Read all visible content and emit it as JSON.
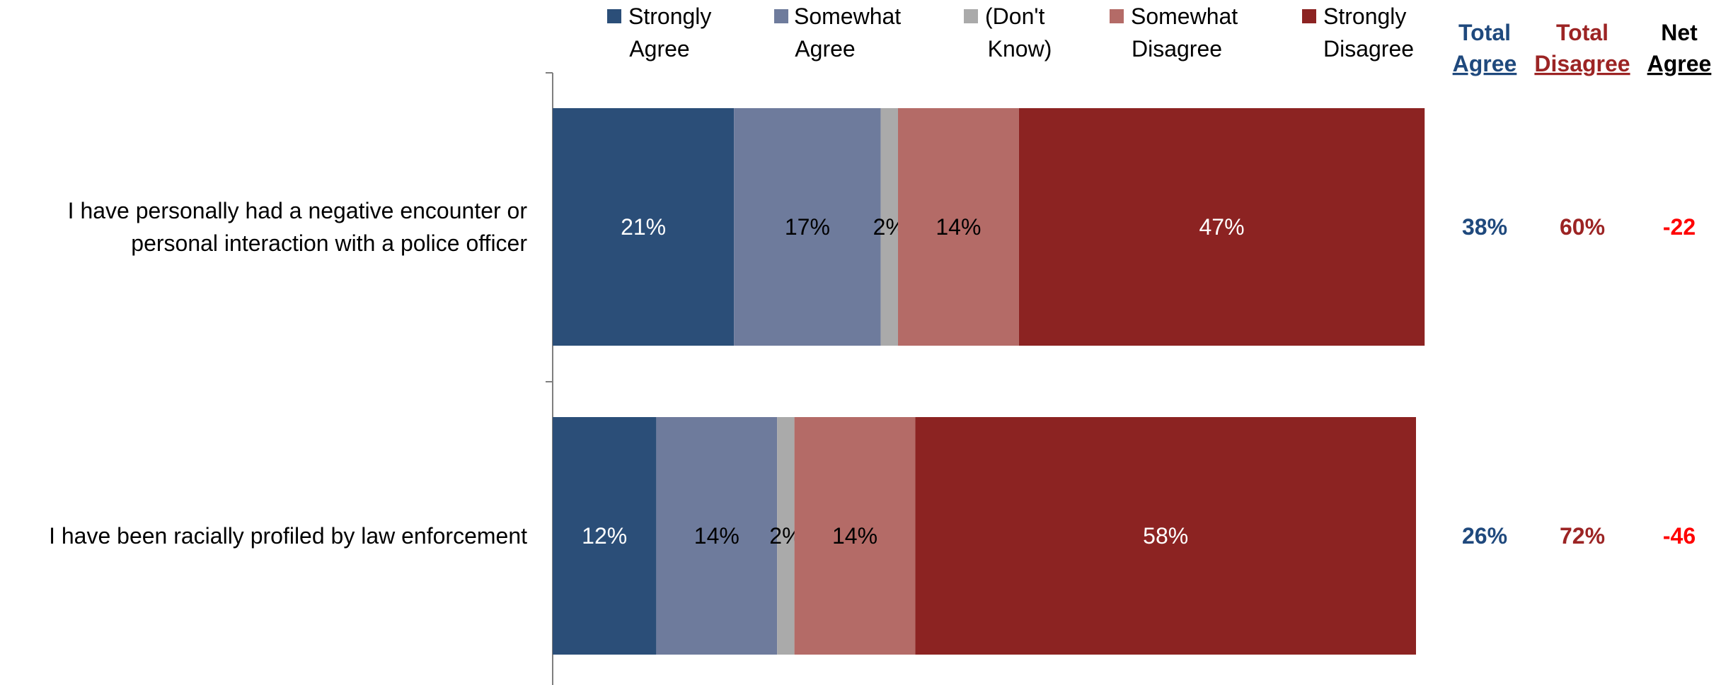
{
  "chart_data": {
    "type": "bar",
    "orientation": "horizontal",
    "stacked": true,
    "categories": [
      [
        "I have personally had a negative encounter or",
        "personal interaction with a police officer"
      ],
      [
        "I have been racially profiled by law enforcement"
      ]
    ],
    "series": [
      {
        "name": [
          "Strongly",
          "Agree"
        ],
        "color": "#2b4e78",
        "label_color": "#ffffff",
        "values": [
          21,
          12
        ]
      },
      {
        "name": [
          "Somewhat",
          "Agree"
        ],
        "color": "#6e7b9c",
        "label_color": "#000000",
        "values": [
          17,
          14
        ]
      },
      {
        "name": [
          "(Don't",
          "Know)"
        ],
        "color": "#aaaaaa",
        "label_color": "#000000",
        "values": [
          2,
          2
        ]
      },
      {
        "name": [
          "Somewhat",
          "Disagree"
        ],
        "color": "#b46b67",
        "label_color": "#000000",
        "values": [
          14,
          14
        ]
      },
      {
        "name": [
          "Strongly",
          "Disagree"
        ],
        "color": "#8c2322",
        "label_color": "#ffffff",
        "values": [
          47,
          58
        ]
      }
    ],
    "value_suffix": "%",
    "xlim": [
      0,
      100
    ],
    "grid": false,
    "legend_placement": "top",
    "summary_columns": [
      {
        "header": [
          "Total",
          "Agree"
        ],
        "header_color": "#1f497d",
        "value_color": "#1f497d",
        "values": [
          "38%",
          "26%"
        ]
      },
      {
        "header": [
          "Total",
          "Disagree"
        ],
        "header_color": "#9c2424",
        "value_color": "#9c2424",
        "values": [
          "60%",
          "72%"
        ]
      },
      {
        "header": [
          "Net",
          "Agree"
        ],
        "header_color": "#000000",
        "value_color": "#ff0000",
        "values": [
          "-22",
          "-46"
        ]
      }
    ]
  }
}
